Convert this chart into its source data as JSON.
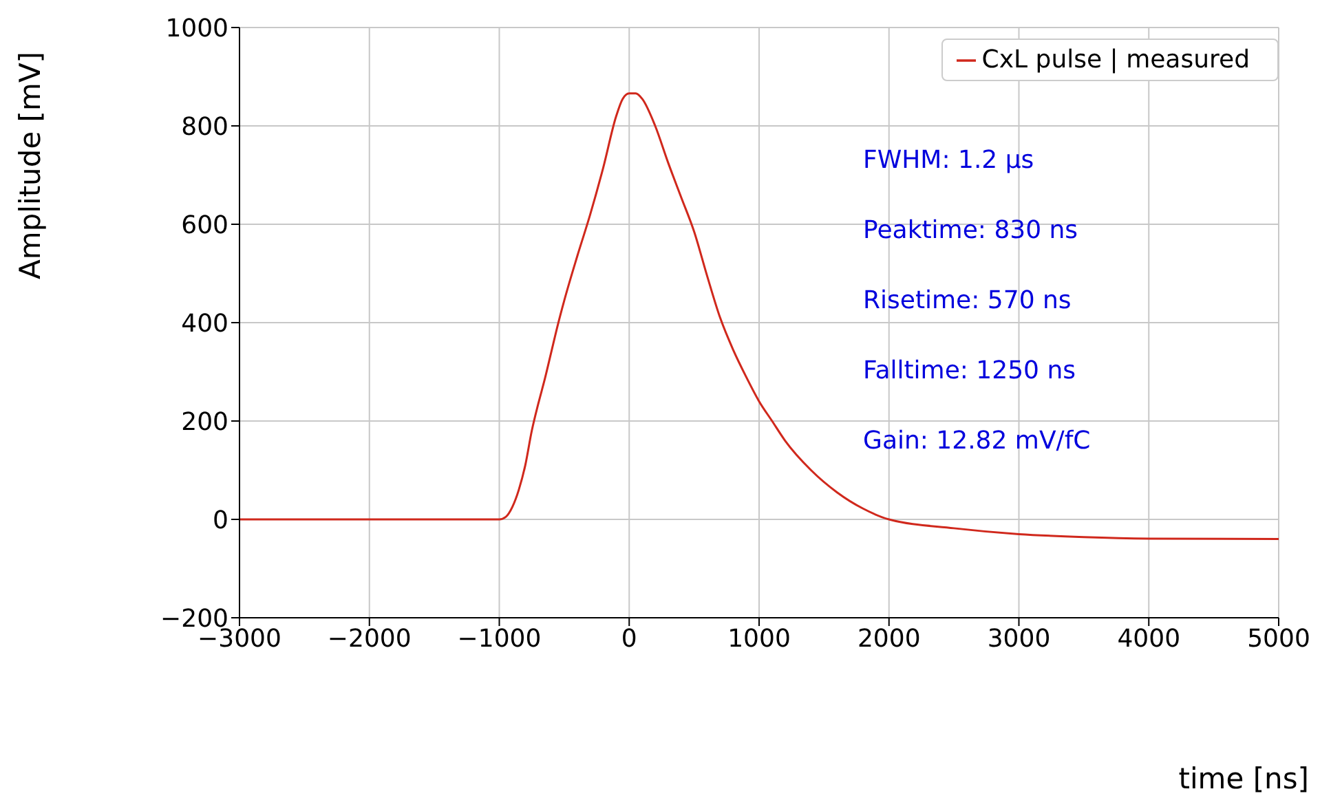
{
  "chart_data": {
    "type": "line",
    "xlabel": "time [ns]",
    "ylabel": "Amplitude [mV]",
    "x": [
      -3000,
      -2000,
      -1000,
      -950,
      -900,
      -850,
      -800,
      -750,
      -700,
      -650,
      -600,
      -550,
      -500,
      -400,
      -300,
      -200,
      -100,
      -50,
      0,
      50,
      100,
      200,
      300,
      400,
      500,
      600,
      700,
      800,
      900,
      1000,
      1100,
      1200,
      1400,
      1600,
      1800,
      2000,
      2500,
      3000,
      3500,
      4000,
      5000
    ],
    "series": [
      {
        "name": "CxL pulse | measured",
        "color": "#d0281c",
        "values": [
          0,
          0,
          0,
          5,
          25,
          60,
          110,
          180,
          235,
          285,
          340,
          395,
          445,
          535,
          620,
          715,
          820,
          855,
          866,
          866,
          855,
          800,
          725,
          655,
          585,
          495,
          410,
          345,
          290,
          240,
          200,
          160,
          100,
          55,
          22,
          0,
          -18,
          -30,
          -36,
          -39,
          -40
        ]
      }
    ],
    "xlim": [
      -3000,
      5000
    ],
    "xticks": [
      -3000,
      -2000,
      -1000,
      0,
      1000,
      2000,
      3000,
      4000,
      5000
    ],
    "ylim": [
      -200,
      1000
    ],
    "yticks": [
      -200,
      0,
      200,
      400,
      600,
      800,
      1000
    ],
    "grid": true,
    "legend": "top right",
    "marker": "none",
    "line_style": "solid",
    "annotations": [
      "FWHM: 1.2 μs",
      "Peaktime: 830 ns",
      "Risetime: 570 ns",
      "Falltime: 1250 ns",
      "Gain: 12.82 mV/fC"
    ]
  }
}
